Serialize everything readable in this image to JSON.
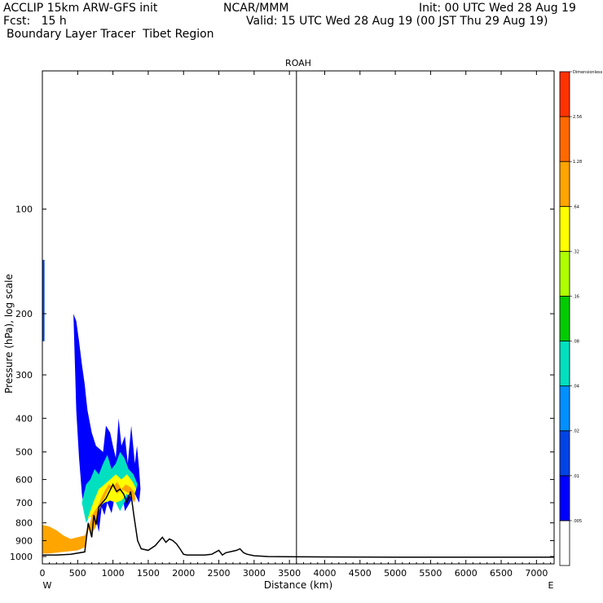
{
  "header": {
    "model": "ACCLIP 15km ARW-GFS init",
    "org": "NCAR/MMM",
    "init": "Init: 00 UTC Wed 28 Aug 19",
    "fcst": "Fcst:   15 h",
    "valid": "Valid: 15 UTC Wed 28 Aug 19 (00 JST Thu 29 Aug 19)",
    "product": "Boundary Layer Tracer  Tibet Region"
  },
  "chart_data": {
    "type": "area",
    "title": "ROAH",
    "xlabel": "Distance (km)",
    "ylabel": "Pressure (hPa), log scale",
    "x_ticks": [
      0,
      500,
      1000,
      1500,
      2000,
      2500,
      3000,
      3500,
      4000,
      4500,
      5000,
      5500,
      6000,
      6500,
      7000
    ],
    "y_ticks": [
      100,
      200,
      300,
      400,
      500,
      600,
      700,
      800,
      900,
      1000
    ],
    "xlim": [
      0,
      7250
    ],
    "ylim": [
      1050,
      40
    ],
    "y_scale": "log",
    "left_end_label": "W",
    "right_end_label": "E",
    "marker_line_x": 3600,
    "colorbar": {
      "levels": [
        ".005",
        ".01",
        ".02",
        ".04",
        ".08",
        ".16",
        ".32",
        ".64",
        "1.28",
        "2.56",
        "Dimensionless"
      ],
      "colors": [
        "#ffffff",
        "#0000ff",
        "#0044e6",
        "#0090ff",
        "#00e0c0",
        "#00cc00",
        "#b0ff00",
        "#ffff00",
        "#ffa500",
        "#ff6a00",
        "#ff3300"
      ]
    },
    "terrain": {
      "x": [
        0,
        200,
        400,
        600,
        650,
        700,
        730,
        760,
        800,
        900,
        1000,
        1050,
        1100,
        1150,
        1200,
        1250,
        1300,
        1350,
        1400,
        1500,
        1600,
        1700,
        1750,
        1800,
        1850,
        1900,
        1950,
        2000,
        2050,
        2100,
        2200,
        2300,
        2400,
        2500,
        2550,
        2600,
        2700,
        2750,
        2800,
        2850,
        2900,
        3000,
        3200,
        3500,
        4000,
        5000,
        6000,
        7250
      ],
      "p": [
        990,
        990,
        985,
        970,
        800,
        880,
        760,
        810,
        720,
        680,
        620,
        650,
        640,
        660,
        700,
        650,
        770,
        900,
        950,
        960,
        930,
        880,
        910,
        890,
        900,
        920,
        950,
        985,
        990,
        990,
        990,
        990,
        985,
        960,
        990,
        975,
        965,
        960,
        950,
        975,
        985,
        995,
        1000,
        1002,
        1003,
        1004,
        1004,
        1004
      ]
    },
    "tracer_regions": [
      {
        "level": ".01",
        "color": "#0000ff",
        "x": [
          440,
          480,
          520,
          560,
          600,
          620,
          640,
          700,
          760,
          860,
          900,
          960,
          1000,
          1040,
          1080,
          1120,
          1170,
          1210,
          1260,
          1310,
          1340,
          1370,
          1390,
          1370,
          1310,
          1240,
          1170,
          1120,
          1080,
          1040,
          980,
          920,
          880,
          840,
          800,
          760,
          720,
          680,
          640,
          600,
          560,
          520,
          480,
          440
        ],
        "p": [
          200,
          210,
          240,
          280,
          320,
          350,
          380,
          440,
          480,
          500,
          420,
          440,
          480,
          520,
          400,
          480,
          450,
          540,
          420,
          540,
          480,
          560,
          640,
          700,
          660,
          700,
          740,
          640,
          720,
          650,
          750,
          700,
          760,
          720,
          850,
          780,
          620,
          640,
          720,
          760,
          660,
          520,
          380,
          200
        ]
      },
      {
        "level": ".16",
        "color": "#00e0c0",
        "x": [
          560,
          620,
          680,
          740,
          800,
          860,
          920,
          980,
          1040,
          1100,
          1160,
          1220,
          1290,
          1350,
          1290,
          1220,
          1160,
          1100,
          1040,
          980,
          920,
          860,
          800,
          740,
          680,
          620,
          560
        ],
        "p": [
          700,
          620,
          600,
          560,
          580,
          540,
          510,
          560,
          540,
          500,
          520,
          560,
          580,
          620,
          680,
          660,
          700,
          740,
          700,
          680,
          700,
          660,
          740,
          700,
          760,
          800,
          700
        ]
      },
      {
        "level": ".64",
        "color": "#ffff00",
        "x": [
          640,
          720,
          800,
          880,
          960,
          1040,
          1120,
          1200,
          1280,
          1330,
          1280,
          1200,
          1120,
          1040,
          960,
          880,
          800,
          720,
          640
        ],
        "p": [
          780,
          700,
          640,
          620,
          600,
          580,
          600,
          580,
          610,
          640,
          680,
          660,
          690,
          700,
          690,
          700,
          720,
          760,
          780
        ]
      },
      {
        "level": "1.28",
        "color": "#ffa500",
        "x": [
          0,
          100,
          200,
          300,
          400,
          500,
          600,
          700,
          780,
          860,
          940,
          1000,
          1060,
          1120,
          1180,
          1240,
          1300,
          1320,
          1300,
          1240,
          1180,
          1120,
          1060,
          1000,
          940,
          860,
          800,
          760,
          700,
          650,
          600,
          500,
          400,
          300,
          200,
          100,
          0
        ],
        "p": [
          980,
          980,
          975,
          970,
          965,
          960,
          940,
          760,
          720,
          660,
          620,
          630,
          610,
          640,
          620,
          630,
          650,
          680,
          700,
          660,
          650,
          640,
          660,
          630,
          640,
          690,
          740,
          820,
          860,
          820,
          870,
          880,
          890,
          870,
          840,
          820,
          810
        ]
      }
    ],
    "left_edge_band": {
      "level": ".02",
      "color": "#0044e6",
      "x": [
        0,
        30,
        30,
        0
      ],
      "p": [
        140,
        140,
        240,
        240
      ]
    }
  }
}
